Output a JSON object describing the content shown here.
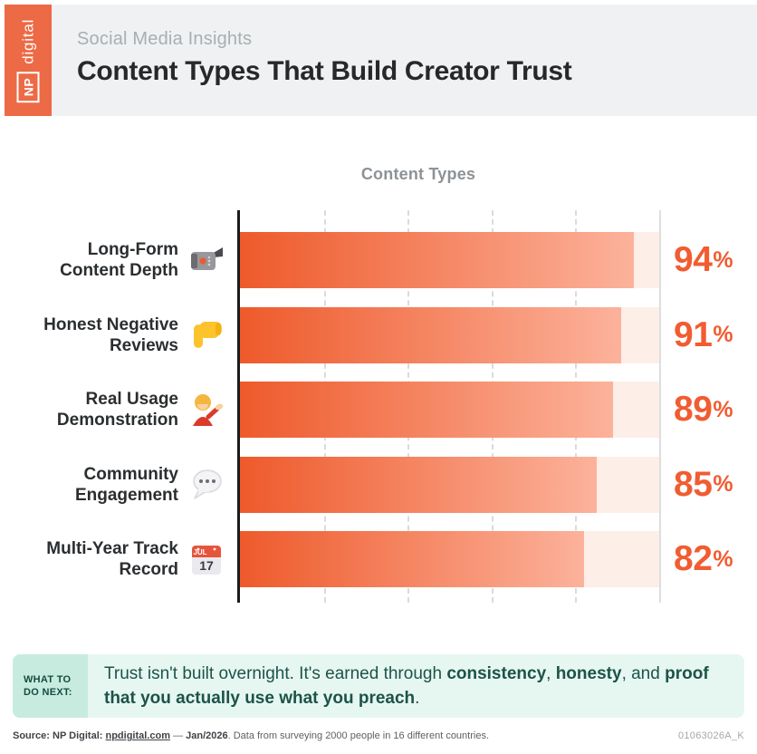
{
  "header": {
    "logo": {
      "np": "NP",
      "digital": "digital"
    },
    "eyebrow": "Social Media Insights",
    "title": "Content Types That Build Creator Trust"
  },
  "chart_data": {
    "type": "bar",
    "orientation": "horizontal",
    "title": "Content Types",
    "categories": [
      "Long-Form Content Depth",
      "Honest Negative Reviews",
      "Real Usage Demonstration",
      "Community Engagement",
      "Multi-Year Track Record"
    ],
    "values": [
      94,
      91,
      89,
      85,
      82
    ],
    "unit": "%",
    "xlim": [
      0,
      100
    ],
    "gridlines_percent": [
      20,
      40,
      60,
      80
    ],
    "grid": "dashed-vertical",
    "legend": "none",
    "icons": [
      "video-camera-emoji",
      "thumbs-down-emoji",
      "woman-tipping-hand-emoji",
      "speech-balloon-emoji",
      "calendar-emoji"
    ]
  },
  "calendar_icon": {
    "month": "JUL",
    "day": "17"
  },
  "callout": {
    "badge": "WHAT TO DO NEXT:",
    "parts": [
      {
        "t": "Trust isn't built overnight. It's earned through ",
        "b": false
      },
      {
        "t": "consistency",
        "b": true
      },
      {
        "t": ", ",
        "b": false
      },
      {
        "t": "honesty",
        "b": true
      },
      {
        "t": ", and ",
        "b": false
      },
      {
        "t": "proof that you actually use what you preach",
        "b": true
      },
      {
        "t": ".",
        "b": false
      }
    ]
  },
  "footer": {
    "source_label": "Source: NP Digital: ",
    "source_link": "npdigital.com",
    "dash": " — ",
    "date": "Jan/2026",
    "rest": ". Data from surveying 2000 people in 16 different countries.",
    "code": "01063026A_K"
  },
  "colors": {
    "brand_orange": "#ec6a45",
    "bar_gradient_start": "#ee5a2b",
    "bar_gradient_end": "#fcb29b",
    "bar_track": "#fdeee8",
    "percent_text": "#f15c31",
    "header_bg": "#f0f1f2",
    "callout_bg": "#e6f7f1",
    "badge_bg": "#c7ecdf",
    "teal_text": "#1d5348"
  }
}
